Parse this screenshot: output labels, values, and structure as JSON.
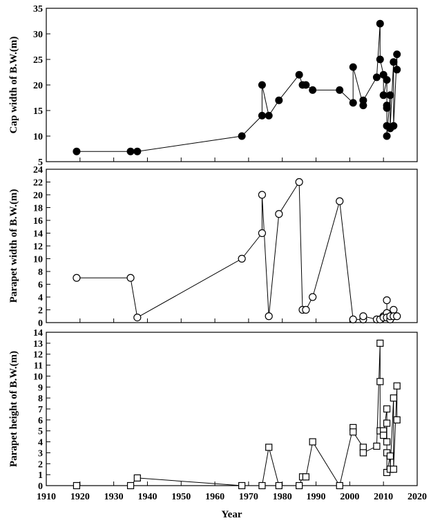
{
  "chart_data": [
    {
      "type": "line",
      "ylabel": "Cap width of B.W.(m)",
      "xlim": [
        1910,
        2020
      ],
      "ylim": [
        5,
        35
      ],
      "yticks": [
        5,
        10,
        15,
        20,
        25,
        30,
        35
      ],
      "marker": "filled-circle",
      "series": [
        {
          "x": [
            1919,
            1935,
            1937,
            1968,
            1974,
            1974,
            1976,
            1979,
            1985,
            1986,
            1987,
            1989,
            1997,
            2001,
            2001,
            2004,
            2004,
            2008,
            2009,
            2009,
            2010,
            2010,
            2011,
            2011,
            2011,
            2011,
            2011,
            2012,
            2012,
            2013,
            2013,
            2014,
            2014
          ],
          "values": [
            7,
            7,
            7,
            10,
            14,
            20,
            14,
            17,
            22,
            20,
            20,
            19,
            19,
            16.5,
            23.5,
            16,
            17,
            21.5,
            32,
            25,
            22,
            18,
            21,
            16,
            15.5,
            12,
            10,
            18,
            11.5,
            24.5,
            12,
            26,
            23
          ]
        }
      ]
    },
    {
      "type": "line",
      "ylabel": "Parapet width of B.W.(m)",
      "xlim": [
        1910,
        2020
      ],
      "ylim": [
        0,
        24
      ],
      "yticks": [
        0,
        2,
        4,
        6,
        8,
        10,
        12,
        14,
        16,
        18,
        20,
        22,
        24
      ],
      "marker": "open-circle",
      "series": [
        {
          "x": [
            1919,
            1935,
            1937,
            1968,
            1974,
            1974,
            1976,
            1979,
            1985,
            1986,
            1987,
            1989,
            1997,
            2001,
            2004,
            2004,
            2008,
            2009,
            2010,
            2010,
            2011,
            2011,
            2011,
            2012,
            2012,
            2013,
            2013,
            2014
          ],
          "values": [
            7,
            7,
            0.8,
            10,
            14,
            20,
            1,
            17,
            22,
            2,
            2,
            4,
            19,
            0.5,
            0.5,
            1,
            0.5,
            0.5,
            1,
            0.8,
            1.5,
            3.5,
            0.8,
            0.5,
            1,
            2,
            1,
            1
          ]
        }
      ]
    },
    {
      "type": "line",
      "xlabel": "Year",
      "ylabel": "Parapet height of B.W.(m)",
      "xlim": [
        1910,
        2020
      ],
      "ylim": [
        0,
        14
      ],
      "xticks": [
        1910,
        1920,
        1930,
        1940,
        1950,
        1960,
        1970,
        1980,
        1990,
        2000,
        2010,
        2020
      ],
      "yticks": [
        0,
        1,
        2,
        3,
        4,
        5,
        6,
        7,
        8,
        9,
        10,
        11,
        12,
        13,
        14
      ],
      "marker": "open-square",
      "series": [
        {
          "x": [
            1919,
            1935,
            1937,
            1968,
            1974,
            1976,
            1979,
            1985,
            1986,
            1987,
            1989,
            1997,
            2001,
            2001,
            2004,
            2004,
            2008,
            2009,
            2009,
            2009,
            2010,
            2010,
            2011,
            2011,
            2011,
            2011,
            2011,
            2012,
            2012,
            2013,
            2013,
            2014,
            2014
          ],
          "values": [
            0,
            0,
            0.7,
            0,
            0,
            3.5,
            0,
            0,
            0.8,
            0.8,
            4,
            0,
            5.3,
            4.9,
            3.5,
            3,
            3.6,
            13,
            9.5,
            5,
            5,
            4.6,
            7,
            5.7,
            4,
            3,
            1.2,
            2.7,
            1.5,
            8,
            1.5,
            9.1,
            6
          ]
        }
      ]
    }
  ]
}
